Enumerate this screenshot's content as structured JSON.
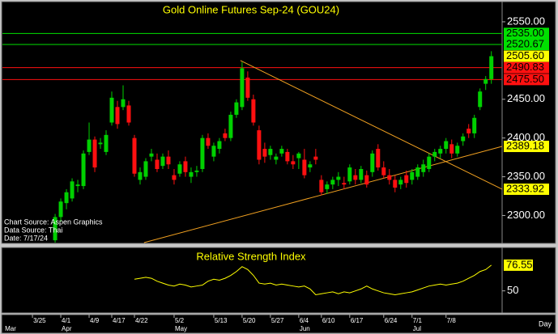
{
  "chart_data": {
    "type": "candlestick",
    "title": "Gold Online Futures Sep-24 (GOU24)",
    "notes": [
      "Chart Source: Aspen Graphics",
      "Data Source: Thai",
      "Date: 7/17/24"
    ],
    "up_color": "#00d000",
    "down_color": "#ff1010",
    "ohlc": [
      [
        2268,
        2302,
        2265,
        2298
      ],
      [
        2298,
        2322,
        2292,
        2318
      ],
      [
        2316,
        2334,
        2308,
        2330
      ],
      [
        2322,
        2348,
        2318,
        2344
      ],
      [
        2338,
        2346,
        2330,
        2340
      ],
      [
        2338,
        2384,
        2334,
        2380
      ],
      [
        2382,
        2420,
        2378,
        2398
      ],
      [
        2398,
        2402,
        2356,
        2362
      ],
      [
        2392,
        2400,
        2386,
        2394
      ],
      [
        2382,
        2410,
        2378,
        2404
      ],
      [
        2420,
        2460,
        2416,
        2452
      ],
      [
        2440,
        2448,
        2412,
        2418
      ],
      [
        2440,
        2468,
        2436,
        2450
      ],
      [
        2442,
        2448,
        2416,
        2420
      ],
      [
        2400,
        2404,
        2350,
        2354
      ],
      [
        2346,
        2362,
        2340,
        2356
      ],
      [
        2350,
        2374,
        2346,
        2370
      ],
      [
        2376,
        2386,
        2370,
        2380
      ],
      [
        2372,
        2380,
        2356,
        2360
      ],
      [
        2364,
        2380,
        2360,
        2376
      ],
      [
        2376,
        2384,
        2360,
        2366
      ],
      [
        2352,
        2360,
        2340,
        2346
      ],
      [
        2354,
        2370,
        2350,
        2366
      ],
      [
        2370,
        2376,
        2350,
        2356
      ],
      [
        2350,
        2362,
        2342,
        2356
      ],
      [
        2356,
        2364,
        2350,
        2358
      ],
      [
        2360,
        2404,
        2356,
        2400
      ],
      [
        2400,
        2406,
        2386,
        2390
      ],
      [
        2376,
        2394,
        2370,
        2390
      ],
      [
        2386,
        2400,
        2380,
        2396
      ],
      [
        2406,
        2412,
        2396,
        2400
      ],
      [
        2400,
        2434,
        2396,
        2430
      ],
      [
        2430,
        2450,
        2426,
        2446
      ],
      [
        2440,
        2498,
        2436,
        2490
      ],
      [
        2478,
        2486,
        2448,
        2452
      ],
      [
        2450,
        2456,
        2416,
        2420
      ],
      [
        2410,
        2416,
        2366,
        2372
      ],
      [
        2386,
        2394,
        2368,
        2376
      ],
      [
        2378,
        2390,
        2372,
        2386
      ],
      [
        2372,
        2380,
        2366,
        2376
      ],
      [
        2380,
        2390,
        2376,
        2386
      ],
      [
        2382,
        2386,
        2366,
        2370
      ],
      [
        2370,
        2378,
        2360,
        2366
      ],
      [
        2374,
        2382,
        2360,
        2380
      ],
      [
        2372,
        2386,
        2348,
        2352
      ],
      [
        2362,
        2370,
        2356,
        2366
      ],
      [
        2376,
        2386,
        2366,
        2372
      ],
      [
        2346,
        2352,
        2326,
        2330
      ],
      [
        2334,
        2344,
        2328,
        2340
      ],
      [
        2340,
        2350,
        2334,
        2346
      ],
      [
        2346,
        2356,
        2338,
        2350
      ],
      [
        2342,
        2350,
        2334,
        2340
      ],
      [
        2344,
        2366,
        2340,
        2362
      ],
      [
        2352,
        2360,
        2340,
        2346
      ],
      [
        2346,
        2364,
        2342,
        2360
      ],
      [
        2352,
        2358,
        2336,
        2340
      ],
      [
        2356,
        2384,
        2350,
        2380
      ],
      [
        2386,
        2392,
        2358,
        2362
      ],
      [
        2362,
        2370,
        2348,
        2352
      ],
      [
        2352,
        2360,
        2340,
        2346
      ],
      [
        2346,
        2352,
        2330,
        2336
      ],
      [
        2340,
        2350,
        2334,
        2346
      ],
      [
        2352,
        2358,
        2336,
        2342
      ],
      [
        2346,
        2360,
        2340,
        2356
      ],
      [
        2350,
        2366,
        2346,
        2362
      ],
      [
        2356,
        2372,
        2350,
        2366
      ],
      [
        2360,
        2380,
        2356,
        2376
      ],
      [
        2376,
        2386,
        2370,
        2382
      ],
      [
        2380,
        2390,
        2374,
        2386
      ],
      [
        2386,
        2400,
        2380,
        2396
      ],
      [
        2392,
        2398,
        2374,
        2380
      ],
      [
        2380,
        2394,
        2376,
        2390
      ],
      [
        2396,
        2406,
        2390,
        2402
      ],
      [
        2412,
        2418,
        2400,
        2406
      ],
      [
        2406,
        2430,
        2400,
        2426
      ],
      [
        2440,
        2464,
        2436,
        2460
      ],
      [
        2470,
        2480,
        2462,
        2476
      ],
      [
        2476,
        2512,
        2470,
        2505.6
      ]
    ],
    "last_label": "2505.60",
    "last_color": "#ffff00",
    "xlim": [
      -9.3,
      78.9
    ],
    "xticks": [
      {
        "value": -4,
        "label": "3/25"
      },
      {
        "value": 1,
        "label": "4/1"
      },
      {
        "value": 6,
        "label": "4/9"
      },
      {
        "value": 10,
        "label": "4/17"
      },
      {
        "value": 14,
        "label": "4/22"
      },
      {
        "value": 21,
        "label": "5/2"
      },
      {
        "value": 28,
        "label": "5/13"
      },
      {
        "value": 33,
        "label": "5/20"
      },
      {
        "value": 38,
        "label": "5/27"
      },
      {
        "value": 43,
        "label": "6/4"
      },
      {
        "value": 47,
        "label": "6/10"
      },
      {
        "value": 52,
        "label": "6/17"
      },
      {
        "value": 58,
        "label": "6/24"
      },
      {
        "value": 63,
        "label": "7/1"
      },
      {
        "value": 69,
        "label": "7/8"
      }
    ],
    "months": [
      {
        "value": -9,
        "label": "Mar"
      },
      {
        "value": 1,
        "label": "Apr"
      },
      {
        "value": 21,
        "label": "May"
      },
      {
        "value": 43,
        "label": "Jun"
      },
      {
        "value": 63,
        "label": "Jul"
      }
    ],
    "x_label": "Day",
    "ylim": [
      2265,
      2575
    ],
    "yticks": [
      {
        "value": 2300,
        "label": "2300.00"
      },
      {
        "value": 2350,
        "label": "2350.00"
      },
      {
        "value": 2400,
        "label": "2400.00"
      },
      {
        "value": 2450,
        "label": "2450.00"
      },
      {
        "value": 2550,
        "label": "2550.00"
      }
    ],
    "levels": [
      {
        "value": 2535,
        "label": "2535.00",
        "color": "#00e000"
      },
      {
        "value": 2520.67,
        "label": "2520.67",
        "color": "#00e000"
      },
      {
        "value": 2490.83,
        "label": "2490.83",
        "color": "#ff1010"
      },
      {
        "value": 2475.5,
        "label": "2475.50",
        "color": "#ff1010"
      }
    ],
    "trendlines": [
      {
        "x": [
          15.7,
          78.9
        ],
        "y": [
          2265,
          2389.18
        ],
        "end_label": "2389.18",
        "color": "#f0a020"
      },
      {
        "x": [
          32.7,
          78.9
        ],
        "y": [
          2500,
          2333.92
        ],
        "end_label": "2333.92",
        "color": "#f0a020"
      }
    ],
    "rsi": {
      "title": "Relative Strength Index",
      "color": "#ffff00",
      "ylim": [
        28,
        94
      ],
      "yticks": [
        50
      ],
      "last_label": "76.55",
      "values": [
        null,
        null,
        null,
        null,
        null,
        null,
        null,
        null,
        null,
        null,
        null,
        null,
        null,
        null,
        62,
        63,
        64,
        63,
        60,
        58,
        56,
        55,
        57,
        56,
        54,
        55,
        56,
        60,
        62,
        61,
        63,
        66,
        70,
        75,
        72,
        66,
        58,
        57,
        58,
        56,
        57,
        56,
        55,
        54,
        55,
        52,
        46,
        47,
        48,
        49,
        47,
        49,
        48,
        50,
        52,
        55,
        52,
        50,
        48,
        47,
        46,
        47,
        48,
        49,
        51,
        53,
        55,
        56,
        57,
        56,
        57,
        58,
        60,
        63,
        66,
        70,
        72,
        76.55
      ]
    }
  }
}
